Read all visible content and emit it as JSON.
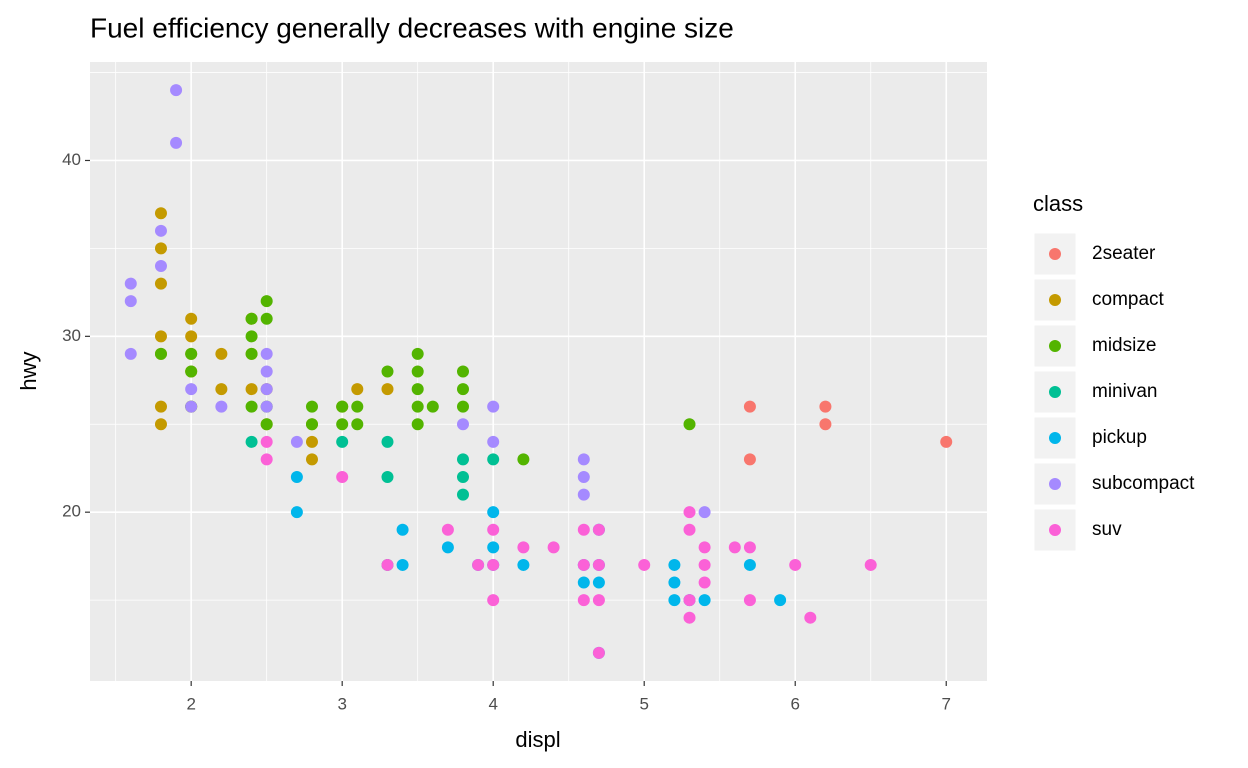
{
  "chart_data": {
    "type": "scatter",
    "title": "Fuel efficiency generally decreases with engine size",
    "x_label": "displ",
    "y_label": "hwy",
    "legend_title": "class",
    "xlim": [
      1.33,
      7.27
    ],
    "ylim": [
      10.4,
      45.6
    ],
    "xticks": [
      2,
      3,
      4,
      5,
      6,
      7
    ],
    "yticks": [
      20,
      30,
      40
    ],
    "grid": true,
    "legend_position": "right",
    "series": [
      {
        "name": "2seater",
        "color": "#F8766D",
        "x": [
          5.7,
          5.7,
          6.2,
          6.2,
          7
        ],
        "values": [
          26,
          23,
          26,
          25,
          24
        ]
      },
      {
        "name": "compact",
        "color": "#C49A00",
        "x": [
          1.8,
          1.8,
          1.8,
          1.8,
          1.8,
          1.8,
          1.8,
          2,
          2,
          2,
          2,
          2,
          2.2,
          2.2,
          2.4,
          2.4,
          2.4,
          2.5,
          2.5,
          2.8,
          2.8,
          2.8,
          3,
          3.1,
          3.3
        ],
        "values": [
          37,
          35,
          33,
          30,
          29,
          26,
          25,
          31,
          30,
          29,
          28,
          26,
          29,
          27,
          31,
          29,
          27,
          27,
          25,
          25,
          24,
          23,
          26,
          27,
          27
        ]
      },
      {
        "name": "midsize",
        "color": "#53B400",
        "x": [
          1.8,
          2,
          2,
          2,
          2.4,
          2.4,
          2.4,
          2.4,
          2.5,
          2.5,
          2.5,
          2.5,
          2.8,
          2.8,
          3,
          3,
          3.1,
          3.1,
          3.3,
          3.5,
          3.5,
          3.5,
          3.5,
          3.5,
          3.6,
          3.8,
          3.8,
          3.8,
          4.2,
          5.3
        ],
        "values": [
          29,
          29,
          28,
          26,
          31,
          30,
          29,
          26,
          32,
          31,
          26,
          25,
          26,
          25,
          26,
          25,
          26,
          25,
          28,
          29,
          28,
          27,
          26,
          25,
          26,
          28,
          27,
          26,
          23,
          25
        ]
      },
      {
        "name": "minivan",
        "color": "#00C094",
        "x": [
          2.4,
          3,
          3.3,
          3.3,
          3.3,
          3.8,
          3.8,
          3.8,
          4
        ],
        "values": [
          24,
          24,
          24,
          22,
          17,
          23,
          22,
          21,
          23
        ]
      },
      {
        "name": "pickup",
        "color": "#00B6EB",
        "x": [
          2.7,
          2.7,
          3.4,
          3.4,
          3.7,
          3.9,
          4,
          4,
          4,
          4.2,
          4.6,
          4.6,
          4.7,
          4.7,
          4.7,
          4.7,
          5.2,
          5.2,
          5.2,
          5.3,
          5.4,
          5.7,
          5.9
        ],
        "values": [
          22,
          20,
          19,
          17,
          18,
          17,
          20,
          18,
          17,
          17,
          17,
          16,
          19,
          17,
          16,
          12,
          17,
          16,
          15,
          15,
          15,
          17,
          15
        ]
      },
      {
        "name": "subcompact",
        "color": "#A58AFF",
        "x": [
          1.6,
          1.6,
          1.6,
          1.8,
          1.8,
          1.9,
          1.9,
          2,
          2,
          2.2,
          2.5,
          2.5,
          2.5,
          2.5,
          2.7,
          3.8,
          4,
          4,
          4.6,
          4.6,
          4.6,
          5.4
        ],
        "values": [
          33,
          32,
          29,
          36,
          34,
          44,
          41,
          27,
          26,
          26,
          29,
          28,
          27,
          26,
          24,
          25,
          26,
          24,
          23,
          22,
          21,
          20
        ]
      },
      {
        "name": "suv",
        "color": "#FB61D7",
        "x": [
          2.5,
          2.5,
          3,
          3.3,
          3.7,
          3.9,
          4,
          4,
          4,
          4.2,
          4.4,
          4.6,
          4.6,
          4.6,
          4.7,
          4.7,
          4.7,
          4.7,
          5,
          5.3,
          5.3,
          5.3,
          5.3,
          5.4,
          5.4,
          5.4,
          5.6,
          5.7,
          5.7,
          6,
          6.1,
          6.5
        ],
        "values": [
          24,
          23,
          22,
          17,
          19,
          17,
          19,
          17,
          15,
          18,
          18,
          19,
          17,
          15,
          19,
          17,
          15,
          12,
          17,
          20,
          19,
          15,
          14,
          18,
          17,
          16,
          18,
          18,
          15,
          17,
          14,
          17
        ]
      }
    ]
  }
}
